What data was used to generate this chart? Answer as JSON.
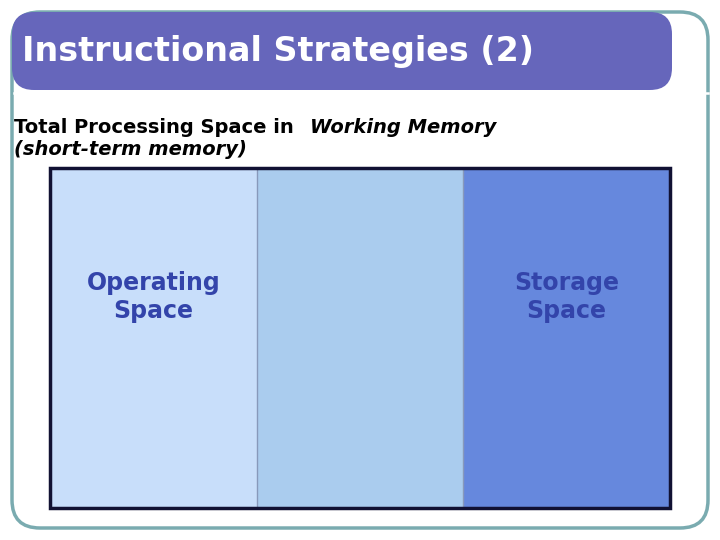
{
  "title": "Instructional Strategies (2)",
  "title_bg_color": "#6666BB",
  "title_text_color": "#FFFFFF",
  "bg_color": "#FFFFFF",
  "outer_fill_color": "#FFFFFF",
  "outer_border_color": "#7AABB0",
  "subtitle_normal": "Total Processing Space in ",
  "subtitle_italic": "Working Memory",
  "subtitle_line2": "(short-term memory)",
  "subtitle_color": "#000000",
  "box_border_color": "#111133",
  "section1_color": "#C8DEFA",
  "section2_color": "#AACCEE",
  "section3_color": "#6688DD",
  "label1": "Operating\nSpace",
  "label2": "Storage\nSpace",
  "label_color": "#3344AA",
  "label_fontsize": 17,
  "title_fontsize": 24,
  "subtitle_fontsize": 14
}
